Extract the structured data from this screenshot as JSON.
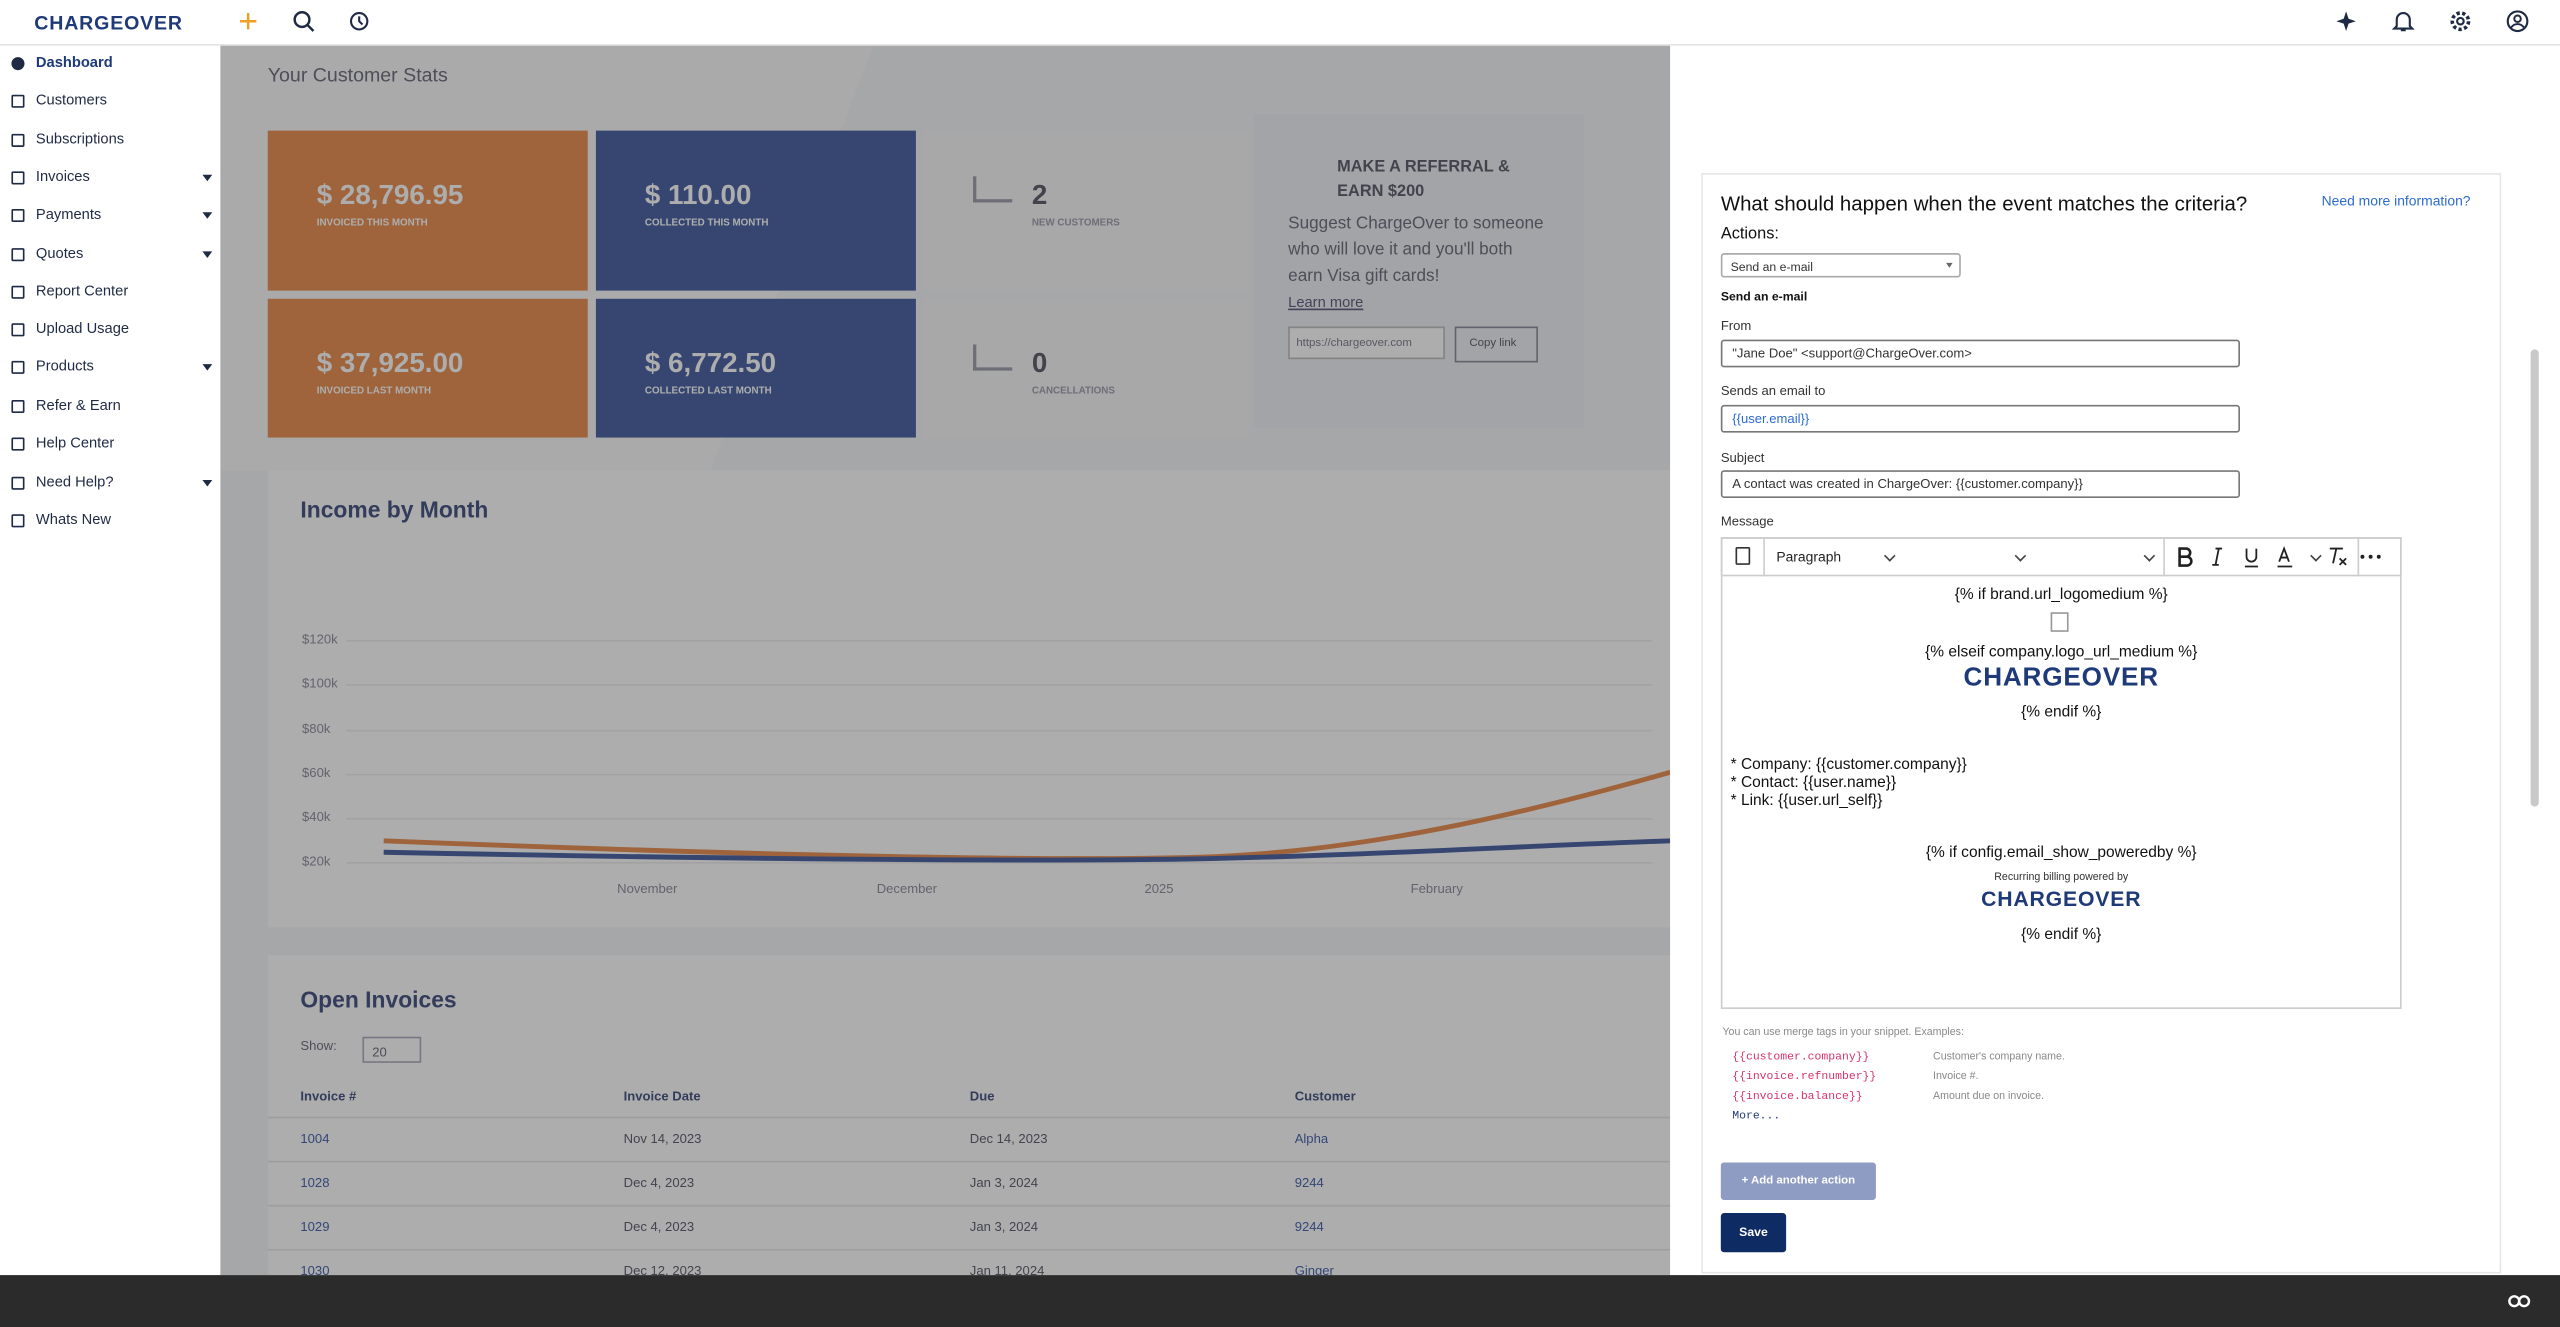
{
  "topbar": {
    "logo": "CHARGEOVER"
  },
  "sidebar": {
    "items": [
      "Dashboard",
      "Customers",
      "Subscriptions",
      "Invoices",
      "Payments",
      "Quotes",
      "Report Center",
      "Upload Usage",
      "Products",
      "Refer & Earn",
      "Help Center",
      "Need Help?",
      "Whats New"
    ]
  },
  "dashboard": {
    "heading": "Your Customer Stats",
    "stats": [
      {
        "value": "$ 28,796.95",
        "label": "INVOICED THIS MONTH"
      },
      {
        "value": "$ 110.00",
        "label": "COLLECTED THIS MONTH"
      },
      {
        "value": "2",
        "label": "NEW CUSTOMERS"
      },
      {
        "value": "$ 37,925.00",
        "label": "INVOICED LAST MONTH"
      },
      {
        "value": "$ 6,772.50",
        "label": "COLLECTED LAST MONTH"
      },
      {
        "value": "0",
        "label": "CANCELLATIONS"
      }
    ],
    "referral": {
      "title": "MAKE A REFERRAL & EARN $200",
      "text": "Suggest ChargeOver to someone who will love it and you'll both earn Visa gift cards!",
      "link": "Learn more",
      "url": "https://chargeover.com",
      "button": "Copy link"
    },
    "income_chart": {
      "title": "Income by Month",
      "y_labels": [
        "$120k",
        "$100k",
        "$80k",
        "$60k",
        "$40k",
        "$20k"
      ],
      "x_labels": [
        "November",
        "December",
        "2025",
        "February"
      ]
    },
    "open_invoices": {
      "title": "Open Invoices",
      "show_label": "Show:",
      "show_value": "20",
      "columns": [
        "Invoice #",
        "Invoice Date",
        "Due",
        "Customer"
      ],
      "rows": [
        [
          "1004",
          "Nov 14, 2023",
          "Dec 14, 2023",
          "Alpha"
        ],
        [
          "1028",
          "Dec 4, 2023",
          "Jan 3, 2024",
          "9244"
        ],
        [
          "1029",
          "Dec 4, 2023",
          "Jan 3, 2024",
          "9244"
        ],
        [
          "1030",
          "Dec 12, 2023",
          "Jan 11, 2024",
          "Ginger"
        ]
      ]
    }
  },
  "form": {
    "question": "What should happen when the event matches the criteria?",
    "help_link": "Need more information?",
    "actions_label": "Actions:",
    "action_value": "Send an e-mail",
    "section": "Send an e-mail",
    "fields": [
      {
        "label": "From",
        "value": "\"Jane Doe\" <support@ChargeOver.com>"
      },
      {
        "label": "Sends an email to",
        "value": "{{user.email}}"
      },
      {
        "label": "Subject",
        "value": "A contact was created in ChargeOver: {{customer.company}}"
      }
    ],
    "message_label": "Message",
    "paragraph": "Paragraph",
    "editor": {
      "line1": "{% if brand.url_logomedium %}",
      "line2": "{% elseif company.logo_url_medium %}",
      "logo": "CHARGEOVER",
      "line3": "{% endif %}",
      "bullets": [
        "* Company: {{customer.company}}",
        "* Contact: {{user.name}}",
        "* Link: {{user.url_self}}"
      ],
      "line4": "{% if config.email_show_poweredby %}",
      "powered": "Recurring billing powered by",
      "logo2": "CHARGEOVER",
      "line5": "{% endif %}"
    },
    "merge_help": "You can use merge tags in your snippet. Examples:",
    "merge_tags": [
      [
        "{{customer.company}}",
        "Customer's company name."
      ],
      [
        "{{invoice.refnumber}}",
        "Invoice #."
      ],
      [
        "{{invoice.balance}}",
        "Amount due on invoice."
      ]
    ],
    "more": "More...",
    "add_button": "+ Add another action",
    "save_button": "Save"
  }
}
